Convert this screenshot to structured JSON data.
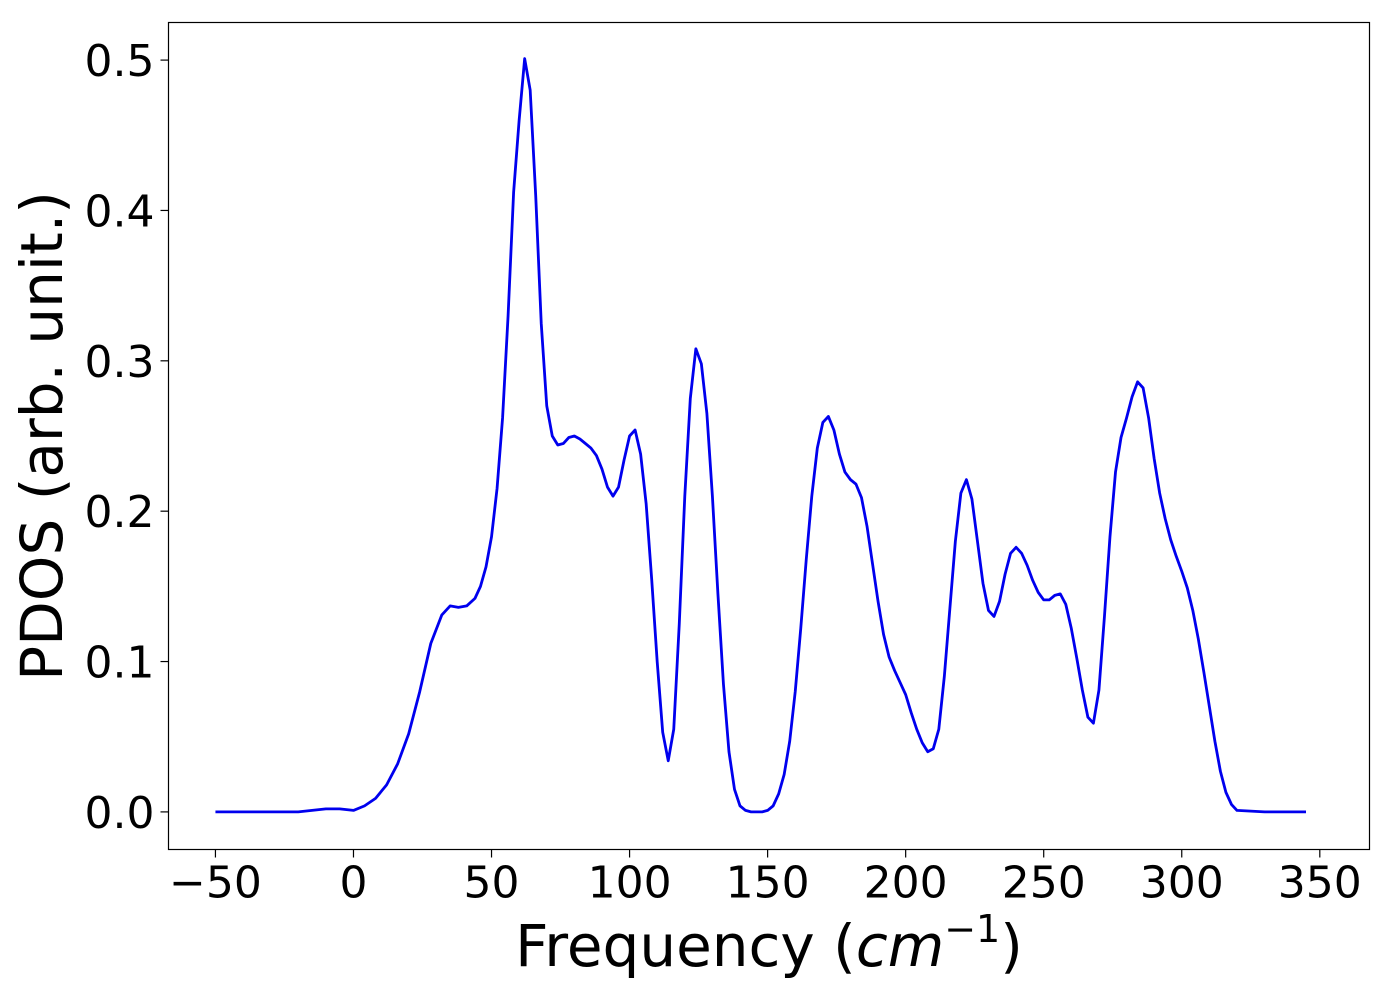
{
  "chart_data": {
    "type": "line",
    "title": "",
    "xlabel": "Frequency (",
    "xlabel_unit": "cm",
    "xlabel_unit_exp": "−1",
    "xlabel_close": ")",
    "ylabel": "PDOS (arb. unit.)",
    "xlim": [
      -67,
      368
    ],
    "ylim": [
      -0.025,
      0.525
    ],
    "xticks": [
      -50,
      0,
      50,
      100,
      150,
      200,
      250,
      300,
      350
    ],
    "xtick_labels": [
      "−50",
      "0",
      "50",
      "100",
      "150",
      "200",
      "250",
      "300",
      "350"
    ],
    "yticks": [
      0.0,
      0.1,
      0.2,
      0.3,
      0.4,
      0.5
    ],
    "ytick_labels": [
      "0.0",
      "0.1",
      "0.2",
      "0.3",
      "0.4",
      "0.5"
    ],
    "grid": false,
    "line_color": "#0000ee",
    "series": [
      {
        "name": "",
        "x": [
          -50,
          -40,
          -30,
          -20,
          -15,
          -10,
          -5,
          0,
          4,
          8,
          12,
          16,
          20,
          24,
          28,
          32,
          35,
          38,
          41,
          44,
          46,
          48,
          50,
          52,
          54,
          56,
          58,
          60,
          62,
          64,
          66,
          68,
          70,
          72,
          74,
          76,
          78,
          80,
          82,
          84,
          86,
          88,
          90,
          92,
          94,
          96,
          98,
          100,
          102,
          104,
          106,
          108,
          110,
          112,
          114,
          116,
          118,
          120,
          122,
          124,
          126,
          128,
          130,
          132,
          134,
          136,
          138,
          140,
          142,
          144,
          146,
          148,
          150,
          152,
          154,
          156,
          158,
          160,
          162,
          164,
          166,
          168,
          170,
          172,
          174,
          176,
          178,
          180,
          182,
          184,
          186,
          188,
          190,
          192,
          194,
          196,
          198,
          200,
          202,
          204,
          206,
          208,
          210,
          212,
          214,
          216,
          218,
          220,
          222,
          224,
          226,
          228,
          230,
          232,
          234,
          236,
          238,
          240,
          242,
          244,
          246,
          248,
          250,
          252,
          254,
          256,
          258,
          260,
          262,
          264,
          266,
          268,
          270,
          272,
          274,
          276,
          278,
          280,
          282,
          284,
          286,
          288,
          290,
          292,
          294,
          296,
          298,
          300,
          302,
          304,
          306,
          308,
          310,
          312,
          314,
          316,
          318,
          320,
          330,
          345
        ],
        "y": [
          0.0,
          0.0,
          0.0,
          0.0,
          0.001,
          0.002,
          0.002,
          0.001,
          0.004,
          0.009,
          0.018,
          0.032,
          0.052,
          0.08,
          0.112,
          0.131,
          0.137,
          0.136,
          0.137,
          0.142,
          0.15,
          0.163,
          0.183,
          0.215,
          0.262,
          0.33,
          0.412,
          0.46,
          0.501,
          0.48,
          0.41,
          0.325,
          0.27,
          0.25,
          0.244,
          0.245,
          0.249,
          0.25,
          0.248,
          0.245,
          0.242,
          0.237,
          0.228,
          0.216,
          0.21,
          0.216,
          0.234,
          0.25,
          0.254,
          0.238,
          0.205,
          0.155,
          0.1,
          0.053,
          0.034,
          0.055,
          0.125,
          0.21,
          0.275,
          0.308,
          0.298,
          0.265,
          0.21,
          0.145,
          0.085,
          0.04,
          0.015,
          0.004,
          0.001,
          0.0,
          0.0,
          0.0,
          0.001,
          0.004,
          0.012,
          0.025,
          0.047,
          0.08,
          0.122,
          0.168,
          0.21,
          0.242,
          0.259,
          0.263,
          0.254,
          0.238,
          0.226,
          0.221,
          0.218,
          0.209,
          0.19,
          0.165,
          0.14,
          0.118,
          0.103,
          0.094,
          0.086,
          0.078,
          0.066,
          0.055,
          0.046,
          0.04,
          0.042,
          0.055,
          0.09,
          0.135,
          0.18,
          0.212,
          0.221,
          0.208,
          0.18,
          0.152,
          0.134,
          0.13,
          0.14,
          0.158,
          0.172,
          0.176,
          0.172,
          0.164,
          0.154,
          0.146,
          0.141,
          0.141,
          0.144,
          0.145,
          0.138,
          0.122,
          0.102,
          0.081,
          0.063,
          0.059,
          0.081,
          0.13,
          0.183,
          0.226,
          0.249,
          0.262,
          0.276,
          0.286,
          0.282,
          0.262,
          0.235,
          0.212,
          0.195,
          0.181,
          0.17,
          0.16,
          0.149,
          0.134,
          0.115,
          0.093,
          0.07,
          0.047,
          0.027,
          0.013,
          0.005,
          0.001,
          0.0,
          0.0
        ]
      }
    ]
  }
}
